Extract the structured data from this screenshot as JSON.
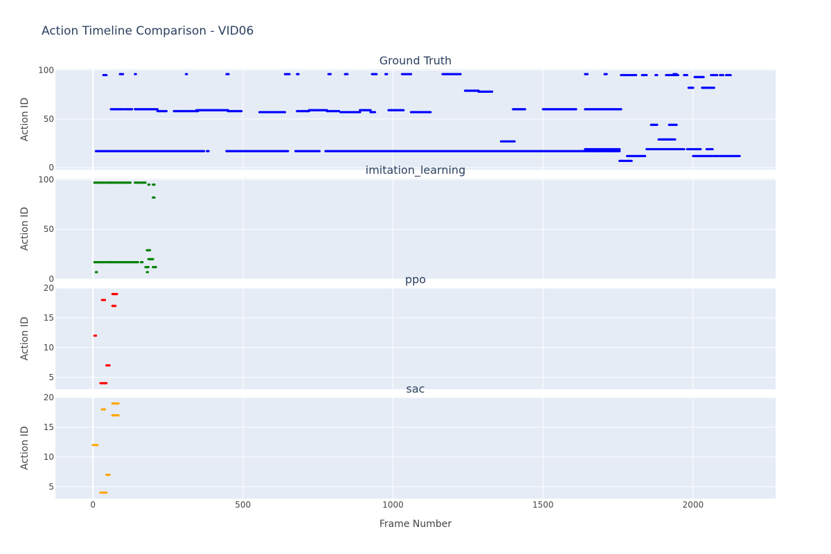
{
  "chart_data": {
    "type": "scatter",
    "title": "Action Timeline Comparison - VID06",
    "xlabel": "Frame Number",
    "xlim": [
      -125,
      2275
    ],
    "x_ticks": [
      0,
      500,
      1000,
      1500,
      2000
    ],
    "grid": true,
    "legend": "none",
    "subplots": [
      {
        "name": "Ground Truth",
        "title": "Ground Truth",
        "ylabel": "Action ID",
        "ylim": [
          -2,
          101
        ],
        "y_ticks": [
          0,
          50,
          100
        ],
        "color": "#0000ff",
        "segments": [
          [
            10,
            370,
            17
          ],
          [
            380,
            385,
            17
          ],
          [
            445,
            650,
            17
          ],
          [
            675,
            755,
            17
          ],
          [
            775,
            1755,
            17
          ],
          [
            1640,
            1755,
            19
          ],
          [
            1670,
            1680,
            17
          ],
          [
            1720,
            1730,
            17
          ],
          [
            1755,
            1770,
            7
          ],
          [
            1775,
            1795,
            7
          ],
          [
            1780,
            1840,
            12
          ],
          [
            1845,
            1860,
            19
          ],
          [
            1860,
            1965,
            19
          ],
          [
            1965,
            1970,
            19
          ],
          [
            1980,
            2020,
            19
          ],
          [
            2000,
            2065,
            12
          ],
          [
            2070,
            2085,
            12
          ],
          [
            2090,
            2155,
            12
          ],
          [
            2020,
            2025,
            19
          ],
          [
            2045,
            2065,
            19
          ],
          [
            35,
            45,
            95
          ],
          [
            90,
            100,
            96
          ],
          [
            140,
            143,
            96
          ],
          [
            310,
            313,
            96
          ],
          [
            445,
            452,
            96
          ],
          [
            640,
            655,
            96
          ],
          [
            680,
            685,
            96
          ],
          [
            785,
            792,
            96
          ],
          [
            840,
            848,
            96
          ],
          [
            930,
            945,
            96
          ],
          [
            975,
            980,
            96
          ],
          [
            1030,
            1060,
            96
          ],
          [
            1165,
            1225,
            96
          ],
          [
            1640,
            1648,
            96
          ],
          [
            1705,
            1712,
            96
          ],
          [
            1760,
            1790,
            95
          ],
          [
            1795,
            1810,
            95
          ],
          [
            1830,
            1845,
            95
          ],
          [
            1875,
            1880,
            95
          ],
          [
            1910,
            1950,
            95
          ],
          [
            1935,
            1945,
            96
          ],
          [
            1970,
            1980,
            95
          ],
          [
            1985,
            2000,
            82
          ],
          [
            2005,
            2035,
            93
          ],
          [
            2030,
            2070,
            82
          ],
          [
            2060,
            2080,
            95
          ],
          [
            2090,
            2100,
            95
          ],
          [
            2110,
            2125,
            95
          ],
          [
            60,
            100,
            60
          ],
          [
            105,
            130,
            60
          ],
          [
            140,
            215,
            60
          ],
          [
            215,
            245,
            58
          ],
          [
            270,
            310,
            58
          ],
          [
            310,
            350,
            58
          ],
          [
            345,
            450,
            59
          ],
          [
            450,
            495,
            58
          ],
          [
            555,
            640,
            57
          ],
          [
            680,
            720,
            58
          ],
          [
            720,
            780,
            59
          ],
          [
            780,
            820,
            58
          ],
          [
            825,
            835,
            57
          ],
          [
            840,
            890,
            57
          ],
          [
            890,
            925,
            59
          ],
          [
            925,
            940,
            57
          ],
          [
            985,
            1035,
            59
          ],
          [
            1060,
            1125,
            57
          ],
          [
            1240,
            1270,
            79
          ],
          [
            1270,
            1285,
            79
          ],
          [
            1285,
            1330,
            78
          ],
          [
            1360,
            1405,
            27
          ],
          [
            1400,
            1440,
            60
          ],
          [
            1500,
            1610,
            60
          ],
          [
            1640,
            1760,
            60
          ],
          [
            1860,
            1880,
            44
          ],
          [
            1885,
            1925,
            29
          ],
          [
            1925,
            1940,
            29
          ],
          [
            1920,
            1945,
            44
          ]
        ]
      },
      {
        "name": "imitation_learning",
        "title": "imitation_learning",
        "ylabel": "Action ID",
        "ylim": [
          0,
          101
        ],
        "y_ticks": [
          0,
          50,
          100
        ],
        "color": "#008000",
        "segments": [
          [
            5,
            40,
            97
          ],
          [
            45,
            60,
            97
          ],
          [
            60,
            125,
            97
          ],
          [
            140,
            155,
            97
          ],
          [
            160,
            175,
            97
          ],
          [
            185,
            188,
            95
          ],
          [
            200,
            205,
            95
          ],
          [
            200,
            205,
            82
          ],
          [
            180,
            190,
            29
          ],
          [
            185,
            200,
            20
          ],
          [
            200,
            210,
            12
          ],
          [
            175,
            185,
            12
          ],
          [
            180,
            183,
            7
          ],
          [
            10,
            13,
            7
          ],
          [
            5,
            40,
            17
          ],
          [
            45,
            150,
            17
          ],
          [
            160,
            165,
            17
          ]
        ]
      },
      {
        "name": "ppo",
        "title": "ppo",
        "ylabel": "Action ID",
        "ylim": [
          3,
          20
        ],
        "y_ticks": [
          5,
          10,
          15,
          20
        ],
        "color": "#ff0000",
        "segments": [
          [
            5,
            10,
            12
          ],
          [
            25,
            45,
            4
          ],
          [
            30,
            40,
            18
          ],
          [
            45,
            55,
            7
          ],
          [
            65,
            75,
            17
          ],
          [
            65,
            80,
            19
          ]
        ]
      },
      {
        "name": "sac",
        "title": "sac",
        "ylabel": "Action ID",
        "ylim": [
          3,
          20
        ],
        "y_ticks": [
          5,
          10,
          15,
          20
        ],
        "color": "#ffa500",
        "segments": [
          [
            0,
            15,
            12
          ],
          [
            25,
            45,
            4
          ],
          [
            30,
            40,
            18
          ],
          [
            45,
            55,
            7
          ],
          [
            65,
            85,
            17
          ],
          [
            65,
            85,
            19
          ]
        ]
      }
    ]
  }
}
